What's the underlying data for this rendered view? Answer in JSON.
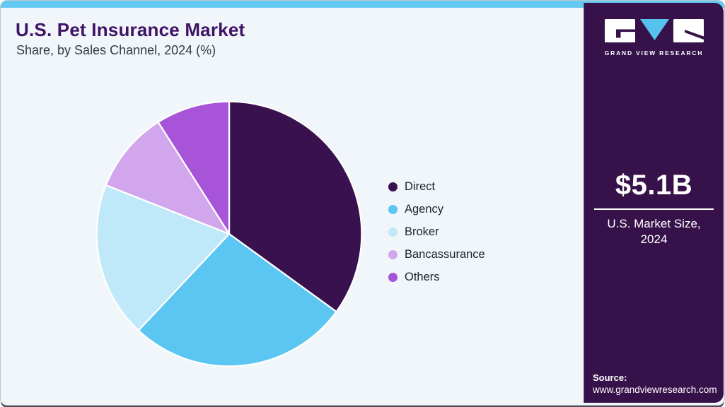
{
  "header": {
    "title": "U.S. Pet Insurance Market",
    "subtitle": "Share, by Sales Channel, 2024 (%)"
  },
  "chart_data": {
    "type": "pie",
    "title": "U.S. Pet Insurance Market Share, by Sales Channel, 2024 (%)",
    "labels": [
      "Direct",
      "Agency",
      "Broker",
      "Bancassurance",
      "Others"
    ],
    "values": [
      35,
      27,
      19,
      10,
      9
    ],
    "unit": "%",
    "colors": [
      "#38114e",
      "#5bc6f2",
      "#bfe8f9",
      "#d2a6ec",
      "#a854d8"
    ],
    "start_angle_deg": 0,
    "direction": "clockwise",
    "legend_position": "right",
    "slice_border_color": "#ffffff"
  },
  "side_panel": {
    "logo_text": "GRAND VIEW RESEARCH",
    "market_size_value": "$5.1B",
    "market_size_label": "U.S. Market Size, 2024",
    "source_label": "Source:",
    "source_url": "www.grandviewresearch.com",
    "background_color": "#37124a",
    "logo_accent_color": "#55c3ee"
  },
  "theme": {
    "top_bar_color": "#63c9f1",
    "card_background": "#f0f6fa",
    "title_color": "#3f1366"
  }
}
